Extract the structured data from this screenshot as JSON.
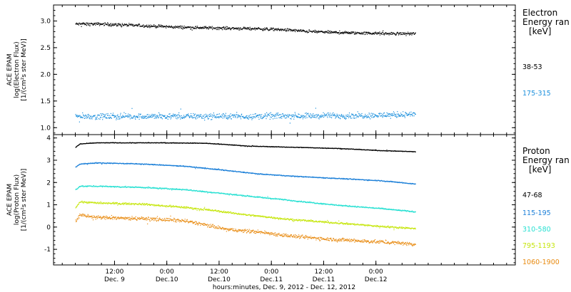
{
  "chart_data": [
    {
      "type": "scatter",
      "panel": "electron",
      "ylabel_lines": [
        "ACE EPAM",
        "log(Electron Flux)",
        "[1/(cm²s ster MeV)]"
      ],
      "yticks": [
        1.0,
        1.5,
        2.0,
        2.5,
        3.0
      ],
      "ytick_labels": [
        "1.0",
        "1.5",
        "2.0",
        "2.5",
        "3.0"
      ],
      "ylim": [
        0.87,
        3.3
      ],
      "legend_title_lines": [
        "Electron",
        "Energy ran",
        "[keV]"
      ],
      "series": [
        {
          "name": "38-53",
          "color": "#000000",
          "x": [
            0,
            6,
            12,
            18,
            24,
            30,
            36,
            42,
            48,
            54,
            60,
            66,
            72,
            78
          ],
          "y": [
            2.95,
            2.95,
            2.93,
            2.91,
            2.89,
            2.88,
            2.87,
            2.86,
            2.84,
            2.81,
            2.79,
            2.78,
            2.77,
            2.77
          ],
          "spread": 0.04
        },
        {
          "name": "175-315",
          "color": "#1b8fdc",
          "x": [
            0,
            10,
            20,
            30,
            40,
            50,
            60,
            70,
            78
          ],
          "y": [
            1.22,
            1.22,
            1.22,
            1.22,
            1.22,
            1.23,
            1.23,
            1.24,
            1.26
          ],
          "spread": 0.08
        }
      ]
    },
    {
      "type": "scatter",
      "panel": "proton",
      "ylabel_lines": [
        "ACE EPAM",
        "log(Proton Flux)",
        "[1/(cm²s ster MeV)]"
      ],
      "yticks": [
        -1,
        0,
        1,
        2,
        3,
        4
      ],
      "ytick_labels": [
        "-1",
        "0",
        "1",
        "2",
        "3",
        "4"
      ],
      "ylim": [
        -1.7,
        4.15
      ],
      "legend_title_lines": [
        "Proton",
        "Energy ran",
        "[keV]"
      ],
      "series": [
        {
          "name": "47-68",
          "color": "#000000",
          "x": [
            0,
            1,
            5,
            10,
            20,
            30,
            40,
            50,
            60,
            70,
            78
          ],
          "y": [
            3.6,
            3.75,
            3.8,
            3.8,
            3.8,
            3.78,
            3.65,
            3.6,
            3.55,
            3.45,
            3.4
          ],
          "spread": 0.02
        },
        {
          "name": "115-195",
          "color": "#1b7fd8",
          "x": [
            0,
            1,
            5,
            15,
            25,
            30,
            35,
            42,
            50,
            60,
            70,
            78
          ],
          "y": [
            2.7,
            2.85,
            2.9,
            2.85,
            2.75,
            2.65,
            2.55,
            2.4,
            2.3,
            2.2,
            2.1,
            1.95
          ],
          "spread": 0.03
        },
        {
          "name": "310-580",
          "color": "#27e0d2",
          "x": [
            0,
            1,
            5,
            15,
            25,
            30,
            40,
            50,
            60,
            70,
            78
          ],
          "y": [
            1.7,
            1.85,
            1.85,
            1.8,
            1.7,
            1.6,
            1.4,
            1.2,
            1.0,
            0.85,
            0.7
          ],
          "spread": 0.04
        },
        {
          "name": "795-1193",
          "color": "#c6e60d",
          "x": [
            0,
            1,
            5,
            15,
            25,
            30,
            40,
            50,
            60,
            70,
            78
          ],
          "y": [
            0.9,
            1.15,
            1.1,
            1.05,
            0.9,
            0.8,
            0.55,
            0.35,
            0.2,
            0.05,
            -0.05
          ],
          "spread": 0.06
        },
        {
          "name": "1060-1900",
          "color": "#e88a10",
          "x": [
            0,
            1,
            5,
            15,
            25,
            30,
            35,
            42,
            50,
            60,
            70,
            78
          ],
          "y": [
            0.3,
            0.55,
            0.45,
            0.4,
            0.3,
            0.1,
            -0.1,
            -0.2,
            -0.4,
            -0.55,
            -0.65,
            -0.75
          ],
          "spread": 0.12
        }
      ]
    }
  ],
  "x_axis": {
    "xlim": [
      -5,
      101
    ],
    "data_start": 0,
    "data_end": 78,
    "ticks": [
      {
        "x": 9,
        "line1": "12:00",
        "line2": "Dec. 9"
      },
      {
        "x": 21,
        "line1": "0:00",
        "line2": "Dec.10"
      },
      {
        "x": 33,
        "line1": "12:00",
        "line2": "Dec.10"
      },
      {
        "x": 45,
        "line1": "0:00",
        "line2": "Dec.11"
      },
      {
        "x": 57,
        "line1": "12:00",
        "line2": "Dec.11"
      },
      {
        "x": 69,
        "line1": "0:00",
        "line2": "Dec.12"
      }
    ],
    "xlabel": "hours:minutes, Dec.  9, 2012 - Dec. 12, 2012"
  }
}
